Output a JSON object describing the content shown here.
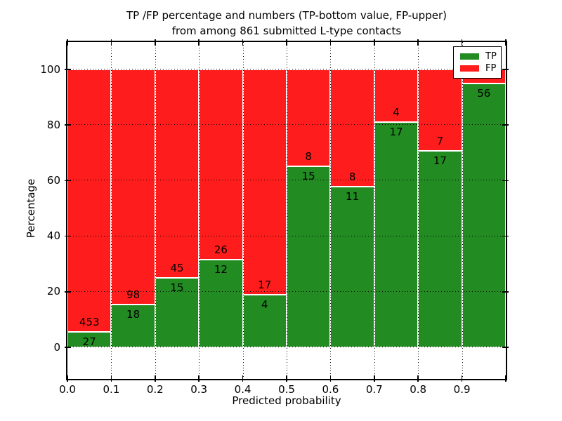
{
  "title": {
    "line1": "TP /FP percentage and numbers (TP-bottom value, FP-upper)",
    "line2": "from among 861 submitted L-type contacts"
  },
  "axes": {
    "xlabel": "Predicted probability",
    "ylabel": "Percentage",
    "xtick_labels": [
      "0.0",
      "0.1",
      "0.2",
      "0.3",
      "0.4",
      "0.5",
      "0.6",
      "0.7",
      "0.8",
      "0.9"
    ],
    "ytick_values": [
      0,
      20,
      40,
      60,
      80,
      100
    ]
  },
  "legend": {
    "position": "upper-right",
    "items": [
      {
        "label": "TP",
        "color": "#228b22"
      },
      {
        "label": "FP",
        "color": "#ff1c1c"
      }
    ]
  },
  "chart_data": {
    "type": "bar",
    "stacked": true,
    "title": "TP /FP percentage and numbers (TP-bottom value, FP-upper) from among 861 submitted L-type contacts",
    "xlabel": "Predicted probability",
    "ylabel": "Percentage",
    "total_submitted": 861,
    "grid": true,
    "legend_position": "upper right",
    "xlim": [
      0.0,
      1.0
    ],
    "ylim": [
      -11,
      110
    ],
    "bin_edges": [
      0.0,
      0.1,
      0.2,
      0.3,
      0.4,
      0.5,
      0.6,
      0.7,
      0.8,
      0.9,
      1.0
    ],
    "series": [
      {
        "name": "TP",
        "color": "#228b22",
        "counts": [
          27,
          18,
          15,
          12,
          4,
          15,
          11,
          17,
          17,
          56
        ]
      },
      {
        "name": "FP",
        "color": "#ff1c1c",
        "counts": [
          453,
          98,
          45,
          26,
          17,
          8,
          8,
          4,
          7,
          null
        ]
      }
    ],
    "tp_percent": [
      5.63,
      15.52,
      25.0,
      31.58,
      19.05,
      65.22,
      57.89,
      80.95,
      70.83,
      94.92
    ],
    "bar_labels_tp": [
      "27",
      "18",
      "15",
      "12",
      "4",
      "15",
      "11",
      "17",
      "17",
      "56"
    ],
    "bar_labels_fp": [
      "453",
      "98",
      "45",
      "26",
      "17",
      "8",
      "8",
      "4",
      "7",
      ""
    ]
  }
}
